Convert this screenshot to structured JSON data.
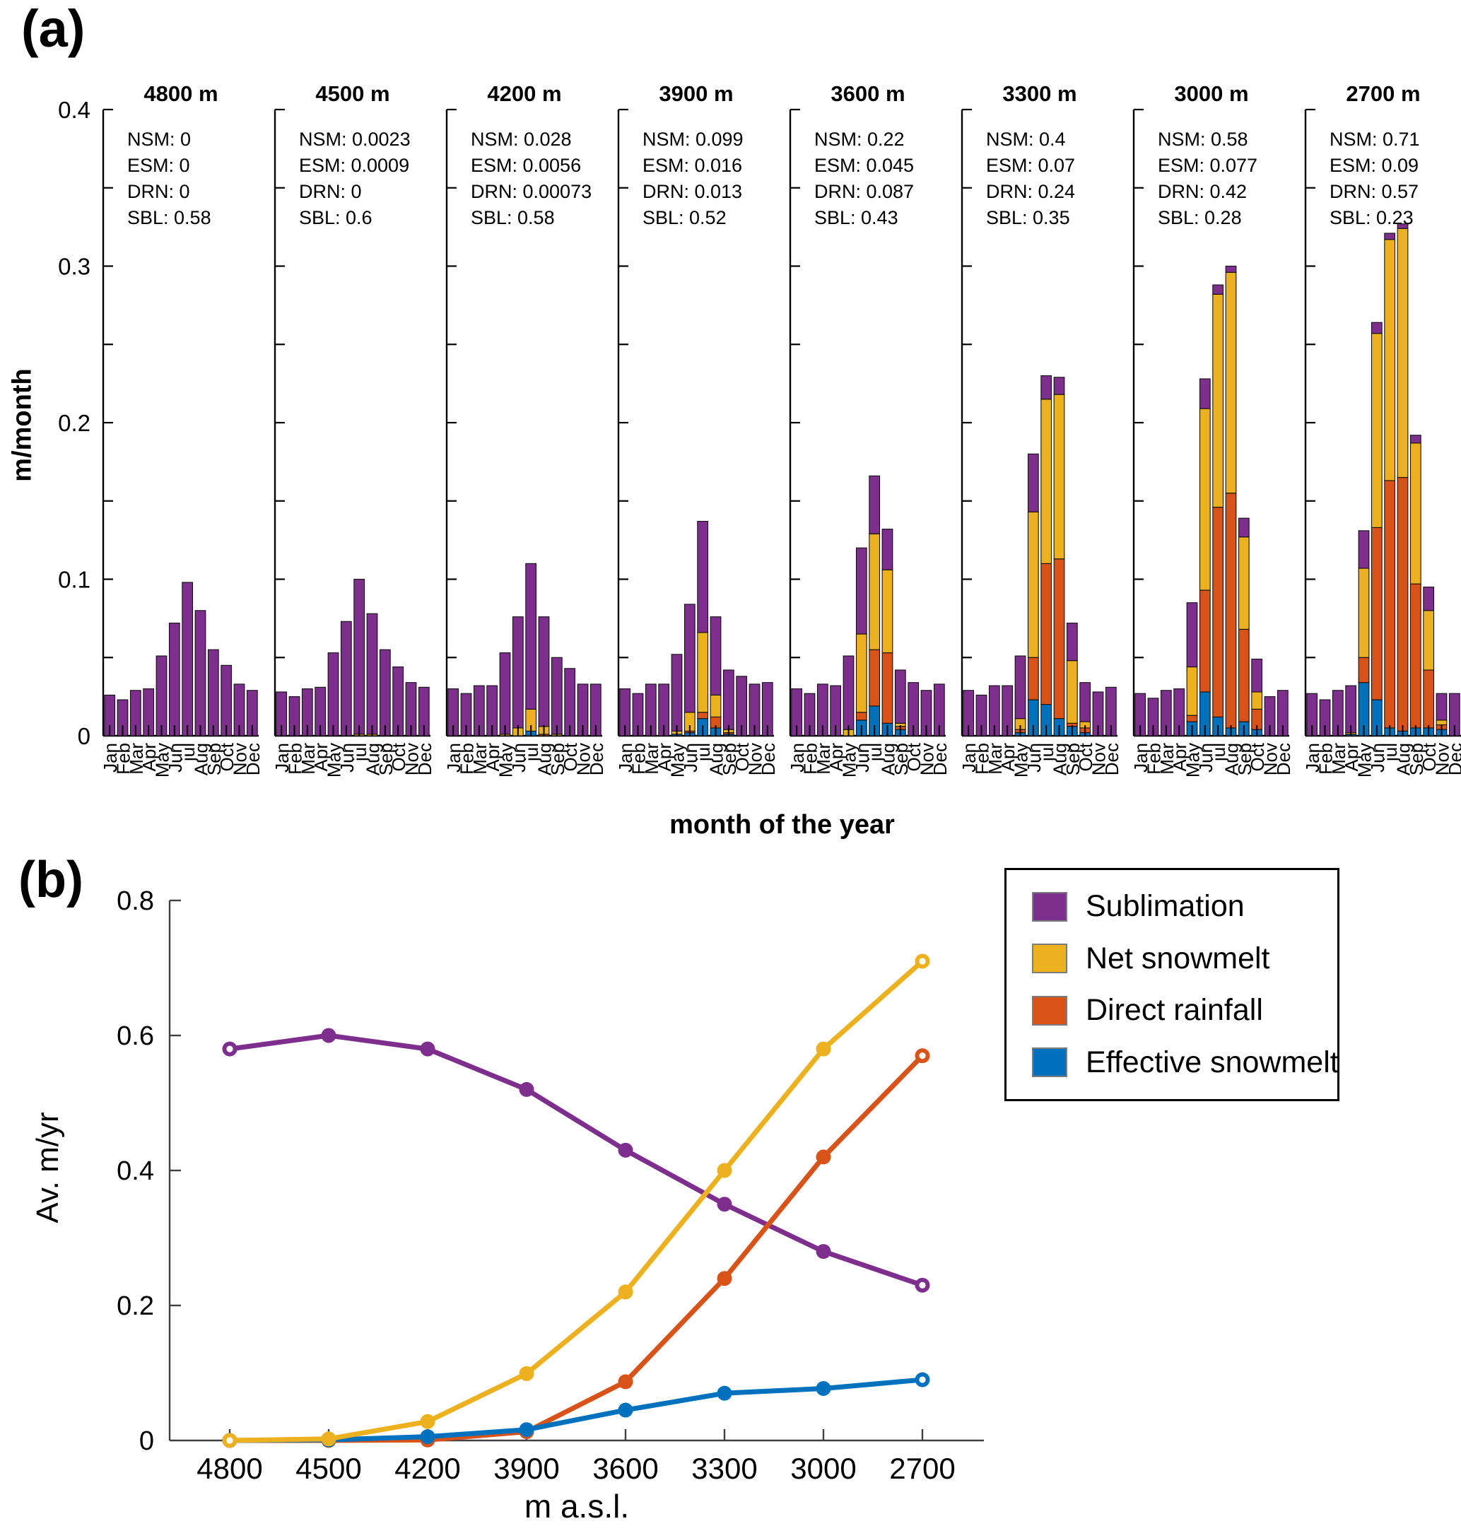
{
  "figure": {
    "panel_a_label": "(a)",
    "panel_b_label": "(b)"
  },
  "chart_data": [
    {
      "type": "bar",
      "stacked": true,
      "ylabel": "m/month",
      "xlabel": "month of the year",
      "ylim": [
        0,
        0.4
      ],
      "ytick_labels": [
        "0",
        "0.1",
        "0.2",
        "0.3",
        "0.4"
      ],
      "minor_tick_step": 0.05,
      "grid": false,
      "categories": [
        "Jan",
        "Feb",
        "Mar",
        "Apr",
        "May",
        "Jun",
        "jul",
        "Aug",
        "Sep",
        "Oct",
        "Nov",
        "Dec"
      ],
      "stack_order": [
        "effective_snowmelt",
        "direct_rainfall",
        "net_snowmelt",
        "sublimation"
      ],
      "colors": {
        "sublimation": "#7E2F8E",
        "net_snowmelt": "#EDB120",
        "direct_rainfall": "#D95319",
        "effective_snowmelt": "#0072BD"
      },
      "panels": [
        {
          "title": "4800 m",
          "annotation_lines": [
            "NSM: 0",
            "ESM: 0",
            "DRN: 0",
            "SBL: 0.58"
          ],
          "series": {
            "effective_snowmelt": [
              0,
              0,
              0,
              0,
              0,
              0,
              0,
              0,
              0,
              0,
              0,
              0
            ],
            "direct_rainfall": [
              0,
              0,
              0,
              0,
              0,
              0,
              0,
              0,
              0,
              0,
              0,
              0
            ],
            "net_snowmelt": [
              0,
              0,
              0,
              0,
              0,
              0,
              0,
              0,
              0,
              0,
              0,
              0
            ],
            "sublimation": [
              0.026,
              0.023,
              0.029,
              0.03,
              0.051,
              0.072,
              0.098,
              0.08,
              0.055,
              0.045,
              0.033,
              0.029
            ]
          }
        },
        {
          "title": "4500 m",
          "annotation_lines": [
            "NSM: 0.0023",
            "ESM: 0.0009",
            "DRN: 0",
            "SBL: 0.6"
          ],
          "series": {
            "effective_snowmelt": [
              0,
              0,
              0,
              0,
              0,
              0,
              0,
              0,
              0,
              0,
              0,
              0
            ],
            "direct_rainfall": [
              0,
              0,
              0,
              0,
              0,
              0,
              0,
              0,
              0,
              0,
              0,
              0
            ],
            "net_snowmelt": [
              0,
              0,
              0,
              0,
              0,
              0,
              0.001,
              0.001,
              0,
              0,
              0,
              0
            ],
            "sublimation": [
              0.028,
              0.025,
              0.03,
              0.031,
              0.053,
              0.073,
              0.099,
              0.077,
              0.055,
              0.044,
              0.034,
              0.031
            ]
          }
        },
        {
          "title": "4200 m",
          "annotation_lines": [
            "NSM: 0.028",
            "ESM: 0.0056",
            "DRN: 0.00073",
            "SBL: 0.58"
          ],
          "series": {
            "effective_snowmelt": [
              0,
              0,
              0,
              0,
              0,
              0,
              0.003,
              0,
              0,
              0,
              0,
              0
            ],
            "direct_rainfall": [
              0,
              0,
              0,
              0,
              0,
              0,
              0,
              0.001,
              0,
              0,
              0,
              0
            ],
            "net_snowmelt": [
              0,
              0,
              0,
              0,
              0.001,
              0.005,
              0.014,
              0.005,
              0.001,
              0,
              0,
              0
            ],
            "sublimation": [
              0.03,
              0.027,
              0.032,
              0.032,
              0.052,
              0.071,
              0.093,
              0.07,
              0.049,
              0.043,
              0.033,
              0.033
            ]
          }
        },
        {
          "title": "3900 m",
          "annotation_lines": [
            "NSM: 0.099",
            "ESM: 0.016",
            "DRN: 0.013",
            "SBL: 0.52"
          ],
          "series": {
            "effective_snowmelt": [
              0,
              0,
              0,
              0,
              0.001,
              0.002,
              0.011,
              0.005,
              0.001,
              0,
              0,
              0
            ],
            "direct_rainfall": [
              0,
              0,
              0,
              0,
              0,
              0.001,
              0.004,
              0.007,
              0.001,
              0,
              0,
              0
            ],
            "net_snowmelt": [
              0,
              0,
              0,
              0,
              0.002,
              0.012,
              0.051,
              0.014,
              0.002,
              0,
              0,
              0
            ],
            "sublimation": [
              0.03,
              0.027,
              0.033,
              0.033,
              0.049,
              0.069,
              0.071,
              0.05,
              0.038,
              0.038,
              0.033,
              0.034
            ]
          }
        },
        {
          "title": "3600 m",
          "annotation_lines": [
            "NSM: 0.22",
            "ESM: 0.045",
            "DRN: 0.087",
            "SBL: 0.43"
          ],
          "series": {
            "effective_snowmelt": [
              0,
              0,
              0,
              0,
              0,
              0.01,
              0.019,
              0.008,
              0.004,
              0,
              0,
              0
            ],
            "direct_rainfall": [
              0,
              0,
              0,
              0,
              0,
              0.005,
              0.036,
              0.045,
              0.002,
              0,
              0,
              0
            ],
            "net_snowmelt": [
              0,
              0,
              0,
              0,
              0.004,
              0.05,
              0.074,
              0.053,
              0.002,
              0,
              0,
              0
            ],
            "sublimation": [
              0.03,
              0.027,
              0.033,
              0.032,
              0.047,
              0.055,
              0.037,
              0.026,
              0.034,
              0.034,
              0.029,
              0.033
            ]
          }
        },
        {
          "title": "3300 m",
          "annotation_lines": [
            "NSM: 0.4",
            "ESM: 0.07",
            "DRN: 0.24",
            "SBL: 0.35"
          ],
          "series": {
            "effective_snowmelt": [
              0,
              0,
              0,
              0,
              0.002,
              0.023,
              0.02,
              0.011,
              0.006,
              0.002,
              0,
              0
            ],
            "direct_rainfall": [
              0,
              0,
              0,
              0,
              0.002,
              0.027,
              0.09,
              0.102,
              0.002,
              0.003,
              0,
              0
            ],
            "net_snowmelt": [
              0,
              0,
              0,
              0,
              0.007,
              0.093,
              0.105,
              0.105,
              0.04,
              0.004,
              0,
              0
            ],
            "sublimation": [
              0.029,
              0.026,
              0.032,
              0.032,
              0.04,
              0.037,
              0.015,
              0.011,
              0.024,
              0.025,
              0.028,
              0.031
            ]
          }
        },
        {
          "title": "3000 m",
          "annotation_lines": [
            "NSM: 0.58",
            "ESM: 0.077",
            "DRN: 0.42",
            "SBL: 0.28"
          ],
          "series": {
            "effective_snowmelt": [
              0,
              0,
              0,
              0,
              0.009,
              0.028,
              0.012,
              0.005,
              0.009,
              0.004,
              0,
              0
            ],
            "direct_rainfall": [
              0,
              0,
              0,
              0,
              0.004,
              0.065,
              0.134,
              0.15,
              0.059,
              0.013,
              0,
              0
            ],
            "net_snowmelt": [
              0,
              0,
              0,
              0,
              0.031,
              0.116,
              0.136,
              0.141,
              0.059,
              0.011,
              0,
              0
            ],
            "sublimation": [
              0.027,
              0.024,
              0.029,
              0.03,
              0.041,
              0.019,
              0.006,
              0.004,
              0.012,
              0.021,
              0.025,
              0.029
            ]
          }
        },
        {
          "title": "2700 m",
          "annotation_lines": [
            "NSM: 0.71",
            "ESM: 0.09",
            "DRN: 0.57",
            "SBL: 0.23"
          ],
          "series": {
            "effective_snowmelt": [
              0,
              0,
              0,
              0.001,
              0.034,
              0.023,
              0.005,
              0.003,
              0.005,
              0.005,
              0.004,
              0
            ],
            "direct_rainfall": [
              0,
              0,
              0,
              0,
              0.016,
              0.11,
              0.158,
              0.162,
              0.092,
              0.037,
              0.003,
              0
            ],
            "net_snowmelt": [
              0,
              0,
              0,
              0.001,
              0.057,
              0.124,
              0.154,
              0.159,
              0.09,
              0.038,
              0.003,
              0
            ],
            "sublimation": [
              0.027,
              0.023,
              0.029,
              0.03,
              0.024,
              0.007,
              0.004,
              0.003,
              0.005,
              0.015,
              0.017,
              0.027
            ]
          }
        }
      ]
    },
    {
      "type": "line",
      "xlabel": "m a.s.l.",
      "ylabel": "Av. m/yr",
      "ylim": [
        0,
        0.8
      ],
      "ytick_labels": [
        "0",
        "0.2",
        "0.4",
        "0.6",
        "0.8"
      ],
      "grid": false,
      "categories": [
        "4800",
        "4500",
        "4200",
        "3900",
        "3600",
        "3300",
        "3000",
        "2700"
      ],
      "legend": {
        "position": "outside-top-right",
        "entries": [
          "Sublimation",
          "Net snowmelt",
          "Direct rainfall",
          "Effective snowmelt"
        ]
      },
      "marker": "circle, open ring on first and last point",
      "z_order": [
        "Sublimation",
        "Direct rainfall",
        "Effective snowmelt",
        "Net snowmelt"
      ],
      "series": [
        {
          "name": "Sublimation",
          "color": "#7E2F8E",
          "values": [
            0.58,
            0.6,
            0.58,
            0.52,
            0.43,
            0.35,
            0.28,
            0.23
          ]
        },
        {
          "name": "Net snowmelt",
          "color": "#EDB120",
          "values": [
            0,
            0.0023,
            0.028,
            0.099,
            0.22,
            0.4,
            0.58,
            0.71
          ]
        },
        {
          "name": "Direct rainfall",
          "color": "#D95319",
          "values": [
            0,
            0,
            0.00073,
            0.013,
            0.087,
            0.24,
            0.42,
            0.57
          ]
        },
        {
          "name": "Effective snowmelt",
          "color": "#0072BD",
          "values": [
            0,
            0.0009,
            0.0056,
            0.016,
            0.045,
            0.07,
            0.077,
            0.09
          ]
        }
      ]
    }
  ]
}
